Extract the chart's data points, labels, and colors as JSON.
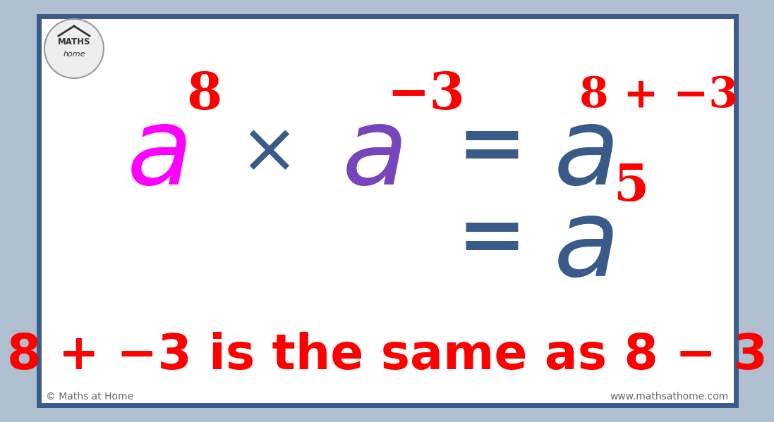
{
  "bg_color": "#ffffff",
  "border_outer_color": "#b0bfd0",
  "border_inner_color": "#3a5a8a",
  "magenta": "#ff00ff",
  "purple": "#7744bb",
  "dark_blue": "#3a5a8a",
  "red": "#ff0000",
  "footer_text_color": "#666666",
  "bottom_text": "8 + −3 is the same as 8 − 3",
  "copyright": "© Maths at Home",
  "website": "www.mathsathome.com"
}
